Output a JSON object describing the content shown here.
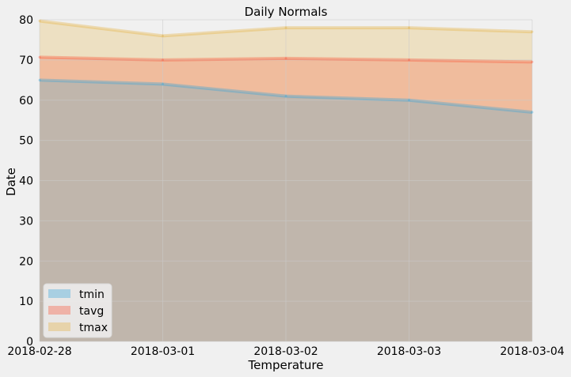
{
  "chart_data": {
    "type": "area",
    "title": "Daily Normals",
    "xlabel": "Temperature",
    "ylabel": "Date",
    "x": [
      "2018-02-28",
      "2018-03-01",
      "2018-03-02",
      "2018-03-03",
      "2018-03-04"
    ],
    "ylim": [
      0,
      80
    ],
    "yticks": [
      0,
      10,
      20,
      30,
      40,
      50,
      60,
      70,
      80
    ],
    "stacked": false,
    "grid": true,
    "legend_position": "lower-left",
    "series": [
      {
        "name": "tmin",
        "values": [
          65,
          64,
          61,
          60,
          57
        ],
        "color": "#30a2da"
      },
      {
        "name": "tavg",
        "values": [
          70.7,
          70.0,
          70.4,
          70.0,
          69.5
        ],
        "color": "#fc4f30"
      },
      {
        "name": "tmax",
        "values": [
          79.7,
          76.0,
          78.0,
          78.0,
          77.0
        ],
        "color": "#e5ae38"
      }
    ]
  }
}
